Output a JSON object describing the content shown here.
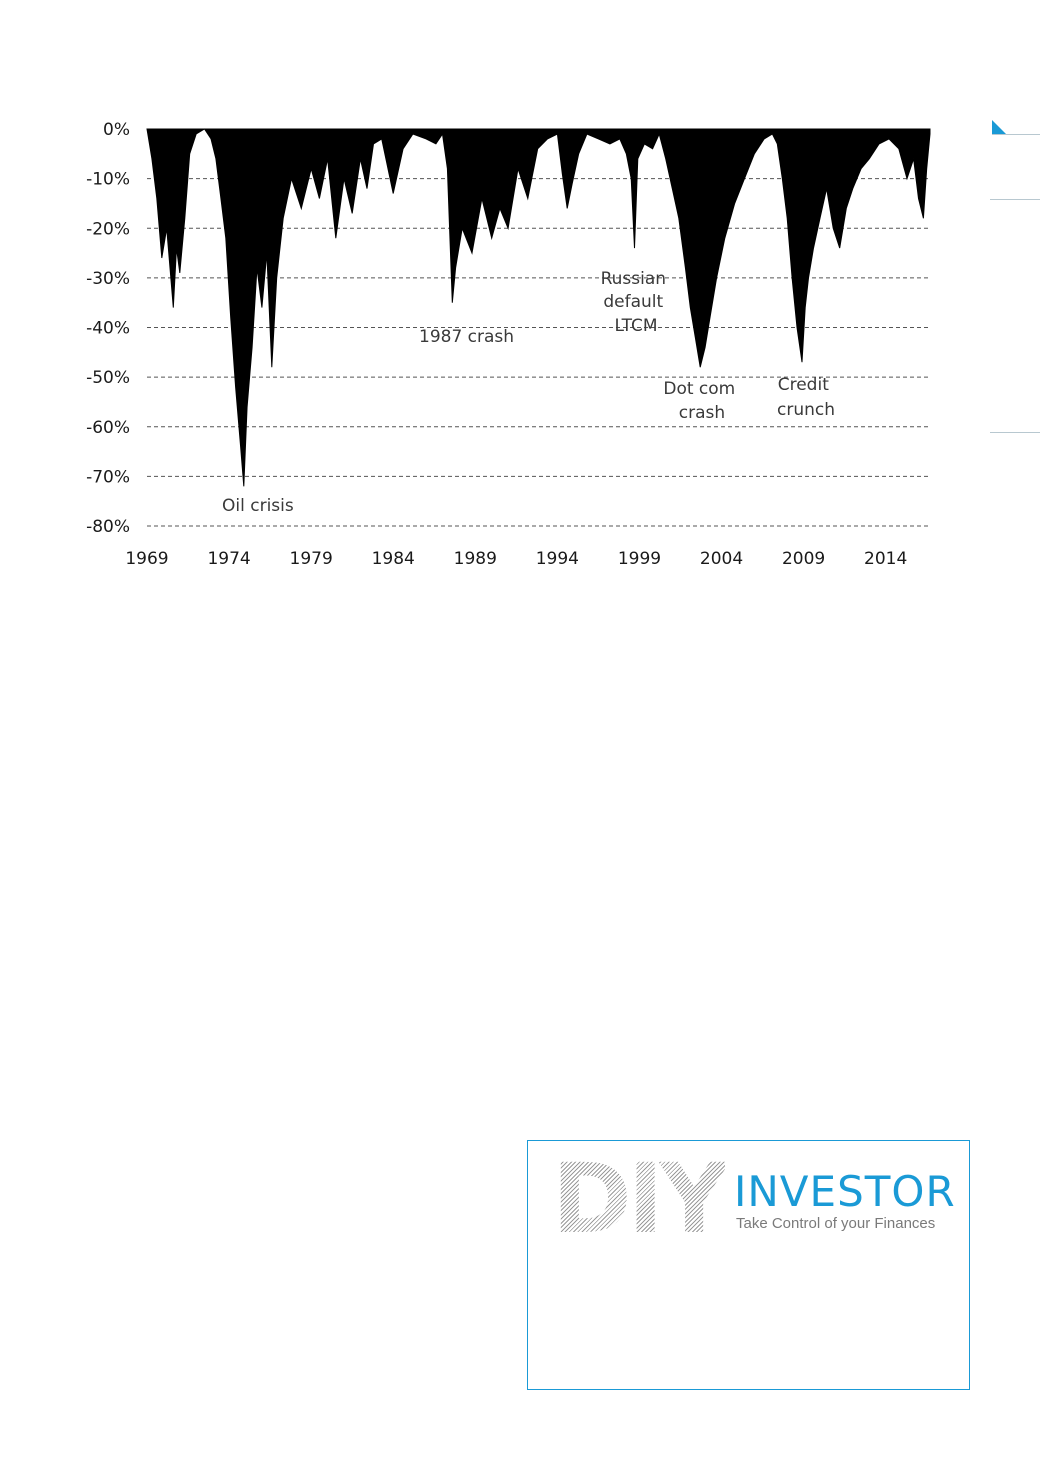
{
  "chart_data": {
    "type": "area",
    "title": "",
    "xlabel": "",
    "ylabel": "",
    "xlim": [
      1969,
      2016.7
    ],
    "ylim": [
      -80,
      0
    ],
    "y_ticks": [
      "0%",
      "-10%",
      "-20%",
      "-30%",
      "-40%",
      "-50%",
      "-60%",
      "-70%",
      "-80%"
    ],
    "y_tick_values": [
      0,
      -10,
      -20,
      -30,
      -40,
      -50,
      -60,
      -70,
      -80
    ],
    "x_ticks": [
      "1969",
      "1974",
      "1979",
      "1984",
      "1989",
      "1994",
      "1999",
      "2004",
      "2009",
      "2014"
    ],
    "x_tick_values": [
      1969,
      1974,
      1979,
      1984,
      1989,
      1994,
      1999,
      2004,
      2009,
      2014
    ],
    "grid": "horizontal dashed",
    "fill_color": "#000000",
    "series": [
      {
        "x": [
          1969.0,
          1969.3,
          1969.6,
          1969.9,
          1970.2,
          1970.4,
          1970.6,
          1970.8,
          1971.0,
          1971.3,
          1971.6,
          1972.0,
          1972.5,
          1972.9,
          1973.2,
          1973.5,
          1973.8,
          1974.1,
          1974.4,
          1974.7,
          1974.9,
          1975.1,
          1975.4,
          1975.7,
          1976.0,
          1976.3,
          1976.6,
          1976.9,
          1977.3,
          1977.8,
          1978.4,
          1979.0,
          1979.5,
          1980.0,
          1980.5,
          1981.0,
          1981.5,
          1982.0,
          1982.4,
          1982.8,
          1983.3,
          1984.0,
          1984.6,
          1985.2,
          1986.0,
          1986.6,
          1987.0,
          1987.3,
          1987.6,
          1987.8,
          1988.2,
          1988.8,
          1989.4,
          1990.0,
          1990.5,
          1991.0,
          1991.6,
          1992.2,
          1992.8,
          1993.4,
          1994.0,
          1994.3,
          1994.6,
          1994.9,
          1995.3,
          1995.8,
          1996.5,
          1997.2,
          1997.8,
          1998.2,
          1998.5,
          1998.7,
          1998.9,
          1999.3,
          1999.8,
          2000.2,
          2000.6,
          2001.0,
          2001.4,
          2001.8,
          2002.1,
          2002.4,
          2002.7,
          2003.0,
          2003.3,
          2003.7,
          2004.2,
          2004.8,
          2005.4,
          2006.0,
          2006.6,
          2007.1,
          2007.4,
          2007.7,
          2008.0,
          2008.3,
          2008.6,
          2008.9,
          2009.1,
          2009.3,
          2009.6,
          2010.0,
          2010.4,
          2010.8,
          2011.2,
          2011.6,
          2012.0,
          2012.5,
          2013.0,
          2013.6,
          2014.2,
          2014.8,
          2015.3,
          2015.7,
          2016.0,
          2016.3,
          2016.5,
          2016.7
        ],
        "y": [
          0,
          -6,
          -14,
          -26,
          -20,
          -28,
          -36,
          -24,
          -29,
          -18,
          -5,
          -1,
          0,
          -2,
          -6,
          -14,
          -22,
          -38,
          -52,
          -64,
          -72,
          -56,
          -44,
          -28,
          -36,
          -25,
          -48,
          -30,
          -18,
          -10,
          -16,
          -8,
          -14,
          -6,
          -22,
          -10,
          -17,
          -6,
          -12,
          -3,
          -2,
          -13,
          -4,
          -1,
          -2,
          -3,
          -1,
          -8,
          -35,
          -28,
          -20,
          -25,
          -14,
          -22,
          -16,
          -20,
          -8,
          -14,
          -4,
          -2,
          -1,
          -9,
          -16,
          -11,
          -5,
          -1,
          -2,
          -3,
          -2,
          -5,
          -10,
          -24,
          -6,
          -3,
          -4,
          -1,
          -6,
          -12,
          -18,
          -28,
          -36,
          -42,
          -48,
          -44,
          -38,
          -30,
          -22,
          -15,
          -10,
          -5,
          -2,
          -1,
          -3,
          -10,
          -18,
          -30,
          -40,
          -47,
          -36,
          -30,
          -24,
          -18,
          -12,
          -20,
          -24,
          -16,
          -12,
          -8,
          -6,
          -3,
          -2,
          -4,
          -10,
          -6,
          -14,
          -18,
          -8,
          -1
        ]
      }
    ],
    "annotations": [
      {
        "text": "Oil crisis"
      },
      {
        "text": "1987 crash"
      },
      {
        "lines": [
          "Russian",
          "default",
          "LTCM"
        ]
      },
      {
        "lines": [
          "Dot com",
          "crash"
        ]
      },
      {
        "lines": [
          "Credit",
          "crunch"
        ]
      }
    ]
  },
  "logo": {
    "diy": "DIY",
    "investor": "INVESTOR",
    "tagline": "Take Control of your Finances"
  }
}
